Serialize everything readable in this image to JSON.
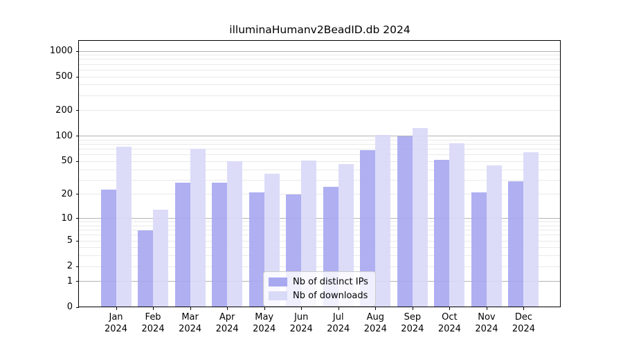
{
  "title": "illuminaHumanv2BeadID.db 2024",
  "chart_data": {
    "type": "bar",
    "title": "illuminaHumanv2BeadID.db 2024",
    "x": [
      "Jan",
      "Feb",
      "Mar",
      "Apr",
      "May",
      "Jun",
      "Jul",
      "Aug",
      "Sep",
      "Oct",
      "Nov",
      "Dec"
    ],
    "x_year": "2024",
    "series": [
      {
        "name": "Nb of distinct IPs",
        "color": "#a8a8f1",
        "values": [
          23,
          7,
          28,
          28,
          21,
          20,
          25,
          68,
          100,
          52,
          21,
          29
        ]
      },
      {
        "name": "Nb of downloads",
        "color": "#d9d9f8",
        "values": [
          75,
          13,
          71,
          50,
          36,
          51,
          47,
          104,
          125,
          82,
          45,
          65
        ]
      }
    ],
    "yscale": "log1p",
    "ylim": [
      0,
      1325
    ],
    "yticks": [
      0,
      1,
      2,
      5,
      10,
      20,
      50,
      100,
      200,
      500,
      1000
    ],
    "yticks_major": [
      1,
      10,
      100,
      1000
    ],
    "yticks_minor": [
      3,
      4,
      6,
      7,
      8,
      9,
      30,
      40,
      60,
      70,
      80,
      90,
      300,
      400,
      600,
      700,
      800,
      900
    ],
    "grid": true,
    "legend_position": "lower center"
  },
  "legend": {
    "items": [
      {
        "label": "Nb of distinct IPs",
        "color": "#a8a8f1"
      },
      {
        "label": "Nb of downloads",
        "color": "#d9d9f8"
      }
    ]
  }
}
